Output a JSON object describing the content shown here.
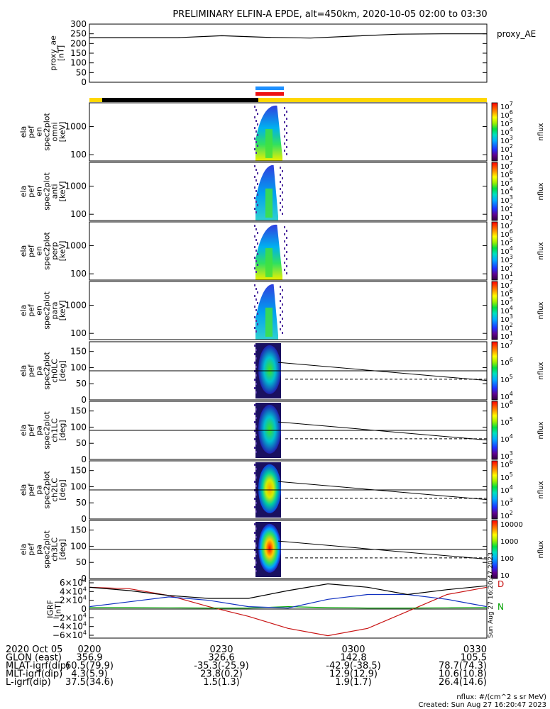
{
  "title": "PRELIMINARY ELFIN-A EPDE, alt=450km, 2020-10-05 02:00 to 03:30",
  "colors": {
    "bar_black": "#000000",
    "bar_yellow": "#ffd700",
    "bar_blue": "#1e90ff",
    "bar_red": "#ee1111",
    "bx": "#c81414",
    "by": "#00a000",
    "bz": "#1030c0"
  },
  "chart_data": [
    {
      "type": "line",
      "name": "proxy_ae",
      "ylabel": "proxy_ae\n[nT]",
      "legend": "proxy_AE",
      "ylim": [
        0,
        300
      ],
      "yticks": [
        "300",
        "250",
        "200",
        "150",
        "100",
        "50",
        "0"
      ],
      "x": [
        "02:00",
        "02:15",
        "02:30",
        "02:40",
        "02:45",
        "02:50",
        "03:00",
        "03:10",
        "03:20",
        "03:30"
      ],
      "values": [
        230,
        230,
        230,
        240,
        232,
        228,
        238,
        248,
        250,
        250
      ]
    },
    {
      "type": "heatmap",
      "name": "ela_pef_en_spec2plot_omni",
      "ylabel": "ela\npef\nen\nspec2plot\nomni\n[keV]",
      "yscale": "log",
      "yticks": [
        "1000",
        "100"
      ],
      "colorbar_label": "nflux",
      "colorbar_ticks": [
        "10^7",
        "10^6",
        "10^5",
        "10^4",
        "10^3",
        "10^2",
        "10^1"
      ]
    },
    {
      "type": "heatmap",
      "name": "ela_pef_en_spec2plot_anti",
      "ylabel": "ela\npef\nen\nspec2plot\nanti\n[keV]",
      "yscale": "log",
      "yticks": [
        "1000",
        "100"
      ],
      "colorbar_label": "nflux",
      "colorbar_ticks": [
        "10^7",
        "10^6",
        "10^5",
        "10^4",
        "10^3",
        "10^2",
        "10^1"
      ]
    },
    {
      "type": "heatmap",
      "name": "ela_pef_en_spec2plot_perp",
      "ylabel": "ela\npef\nen\nspec2plot\nperp\n[keV]",
      "yscale": "log",
      "yticks": [
        "1000",
        "100"
      ],
      "colorbar_label": "nflux",
      "colorbar_ticks": [
        "10^7",
        "10^6",
        "10^5",
        "10^4",
        "10^3",
        "10^2",
        "10^1"
      ]
    },
    {
      "type": "heatmap",
      "name": "ela_pef_en_spec2plot_para",
      "ylabel": "ela\npef\nen\nspec2plot\npara\n[keV]",
      "yscale": "log",
      "yticks": [
        "1000",
        "100"
      ],
      "colorbar_label": "nflux",
      "colorbar_ticks": [
        "10^7",
        "10^6",
        "10^5",
        "10^4",
        "10^3",
        "10^2",
        "10^1"
      ]
    },
    {
      "type": "heatmap",
      "name": "ela_pef_pa_spec2plot_ch0LC",
      "ylabel": "ela\npef\npa\nspec2plot\nch0LC\n[deg]",
      "ylim": [
        0,
        180
      ],
      "yticks": [
        "150",
        "100",
        "50",
        "0"
      ],
      "colorbar_label": "nflux",
      "colorbar_ticks": [
        "10^7",
        "10^6",
        "10^5",
        "10^4"
      ]
    },
    {
      "type": "heatmap",
      "name": "ela_pef_pa_spec2plot_ch1LC",
      "ylabel": "ela\npef\npa\nspec2plot\nch1LC\n[deg]",
      "ylim": [
        0,
        180
      ],
      "yticks": [
        "150",
        "100",
        "50",
        "0"
      ],
      "colorbar_label": "nflux",
      "colorbar_ticks": [
        "10^6",
        "10^5",
        "10^4",
        "10^3"
      ]
    },
    {
      "type": "heatmap",
      "name": "ela_pef_pa_spec2plot_ch2LC",
      "ylabel": "ela\npef\npa\nspec2plot\nch2LC\n[deg]",
      "ylim": [
        0,
        180
      ],
      "yticks": [
        "150",
        "100",
        "50",
        "0"
      ],
      "colorbar_label": "nflux",
      "colorbar_ticks": [
        "10^6",
        "10^5",
        "10^4",
        "10^3",
        "10^2"
      ]
    },
    {
      "type": "heatmap",
      "name": "ela_pef_pa_spec2plot_ch3LC",
      "ylabel": "ela\npef\npa\nspec2plot\nch3LC\n[deg]",
      "ylim": [
        0,
        180
      ],
      "yticks": [
        "150",
        "100",
        "50",
        "0"
      ],
      "colorbar_label": "nflux",
      "colorbar_ticks": [
        "10000",
        "1000",
        "100",
        "10"
      ]
    },
    {
      "type": "line",
      "name": "IGRF",
      "ylabel": "IGRF\n[nT]",
      "ylim": [
        -60000,
        60000
      ],
      "yticks": [
        "6×10^4",
        "4×10^4",
        "2×10^4",
        "0",
        "−2×10^4",
        "−4×10^4",
        "−6×10^4"
      ],
      "x": [
        0,
        0.1,
        0.2,
        0.3,
        0.4,
        0.5,
        0.6,
        0.7,
        0.8,
        0.9,
        1.0
      ],
      "series": [
        {
          "name": "D",
          "values": [
            45000,
            42000,
            28000,
            5000,
            -15000,
            -40000,
            -55000,
            -40000,
            -5000,
            30000,
            45000
          ]
        },
        {
          "name": "N",
          "values": [
            3000,
            3000,
            2500,
            2000,
            2000,
            5000,
            3000,
            2000,
            2000,
            2500,
            3000
          ]
        },
        {
          "name": "",
          "values": [
            5000,
            15000,
            25000,
            18000,
            5000,
            2000,
            20000,
            30000,
            30000,
            20000,
            5000
          ]
        },
        {
          "name": "",
          "values": [
            45000,
            38000,
            28000,
            22000,
            22000,
            38000,
            52000,
            45000,
            30000,
            40000,
            48000
          ]
        }
      ]
    }
  ],
  "annotations": {
    "igrf_side_label": "Sun Aug 27 16:20:47 2023",
    "footer_left_label": "nflux: #/(cm^2 s sr MeV)",
    "footer_created": "Created: Sun Aug 27 16:20:47 2023"
  },
  "ephemeris": {
    "rows": [
      {
        "label": "2020 Oct 05",
        "values": [
          "0200",
          "0230",
          "0300",
          "0330"
        ]
      },
      {
        "label": "GLON (east)",
        "values": [
          "356.9",
          "326.6",
          "142.8",
          "105.5"
        ]
      },
      {
        "label": "MLAT-igrf(dip)",
        "values": [
          "60.5(79.9)",
          "-35.3(-25.9)",
          "-42.9(-38.5)",
          "78.7(74.3)"
        ]
      },
      {
        "label": "MLT-igrf(dip)",
        "values": [
          "4.3(5.9)",
          "23.8(0.2)",
          "12.9(12.9)",
          "10.6(10.8)"
        ]
      },
      {
        "label": "L-igrf(dip)",
        "values": [
          "37.5(34.6)",
          "1.5(1.3)",
          "1.9(1.7)",
          "26.4(14.6)"
        ]
      }
    ]
  }
}
